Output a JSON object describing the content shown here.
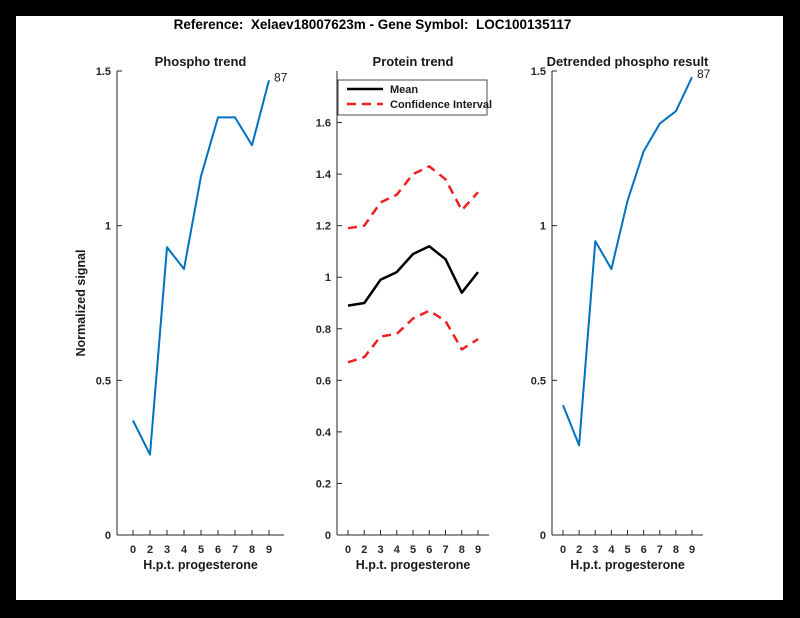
{
  "header": {
    "suptitle": "Reference:  Xelaev18007623m - Gene Symbol:  LOC100135117"
  },
  "colors": {
    "background": "#000000",
    "figure_background": "#ffffff",
    "axis": "#262626",
    "text": "#1a1a1a",
    "blue_line": "#0072bd",
    "red_dashed": "#ee2020",
    "black_line": "#000000"
  },
  "chart_data": [
    {
      "type": "line",
      "title": "Phospho trend",
      "xlabel": "H.p.t. progesterone",
      "ylabel": "Normalized signal",
      "x_ticklabels": [
        "0",
        "2",
        "3",
        "4",
        "5",
        "6",
        "7",
        "8",
        "9"
      ],
      "y_tick_values": [
        0,
        0.5,
        1,
        1.5
      ],
      "y_ticklabels": [
        "0",
        "0.5",
        "1",
        "1.5"
      ],
      "ylim": [
        0,
        1.5
      ],
      "grid": false,
      "legend": null,
      "end_label": "87",
      "series": [
        {
          "name": "phospho-signal",
          "color": "#0072bd",
          "dash": "solid",
          "line_width": 2,
          "values": [
            0.37,
            0.26,
            0.93,
            0.86,
            1.16,
            1.35,
            1.35,
            1.26,
            1.47
          ]
        }
      ]
    },
    {
      "type": "line",
      "title": "Protein trend",
      "xlabel": "H.p.t. progesterone",
      "ylabel": "",
      "x_ticklabels": [
        "0",
        "2",
        "3",
        "4",
        "5",
        "6",
        "7",
        "8",
        "9"
      ],
      "y_tick_values": [
        0,
        0.2,
        0.4,
        0.6,
        0.8,
        1,
        1.2,
        1.4,
        1.6
      ],
      "y_ticklabels": [
        "0",
        "0.2",
        "0.4",
        "0.6",
        "0.8",
        "1",
        "1.2",
        "1.4",
        "1.6"
      ],
      "ylim": [
        0,
        1.8
      ],
      "grid": false,
      "legend": {
        "position": "top-left-inside",
        "entries": [
          {
            "label": "Mean",
            "color": "#000000",
            "dash": "solid"
          },
          {
            "label": "Confidence Interval",
            "color": "#ee2020",
            "dash": "dashed"
          }
        ]
      },
      "end_label": null,
      "series": [
        {
          "name": "mean",
          "color": "#000000",
          "dash": "solid",
          "line_width": 2.5,
          "values": [
            0.89,
            0.9,
            0.99,
            1.02,
            1.09,
            1.12,
            1.07,
            0.94,
            1.02
          ]
        },
        {
          "name": "confidence-upper",
          "color": "#ee2020",
          "dash": "dashed",
          "line_width": 2.5,
          "values": [
            1.19,
            1.2,
            1.29,
            1.32,
            1.4,
            1.43,
            1.38,
            1.26,
            1.33
          ]
        },
        {
          "name": "confidence-lower",
          "color": "#ee2020",
          "dash": "dashed",
          "line_width": 2.5,
          "values": [
            0.67,
            0.69,
            0.77,
            0.78,
            0.84,
            0.87,
            0.83,
            0.72,
            0.76
          ]
        }
      ]
    },
    {
      "type": "line",
      "title": "Detrended phospho result",
      "xlabel": "H.p.t. progesterone",
      "ylabel": "",
      "x_ticklabels": [
        "0",
        "2",
        "3",
        "4",
        "5",
        "6",
        "7",
        "8",
        "9"
      ],
      "y_tick_values": [
        0,
        0.5,
        1,
        1.5
      ],
      "y_ticklabels": [
        "0",
        "0.5",
        "1",
        "1.5"
      ],
      "ylim": [
        0,
        1.5
      ],
      "grid": false,
      "legend": null,
      "end_label": "87",
      "series": [
        {
          "name": "detrended-phospho",
          "color": "#0072bd",
          "dash": "solid",
          "line_width": 2,
          "values": [
            0.42,
            0.29,
            0.95,
            0.86,
            1.08,
            1.24,
            1.33,
            1.37,
            1.48
          ]
        }
      ]
    }
  ]
}
